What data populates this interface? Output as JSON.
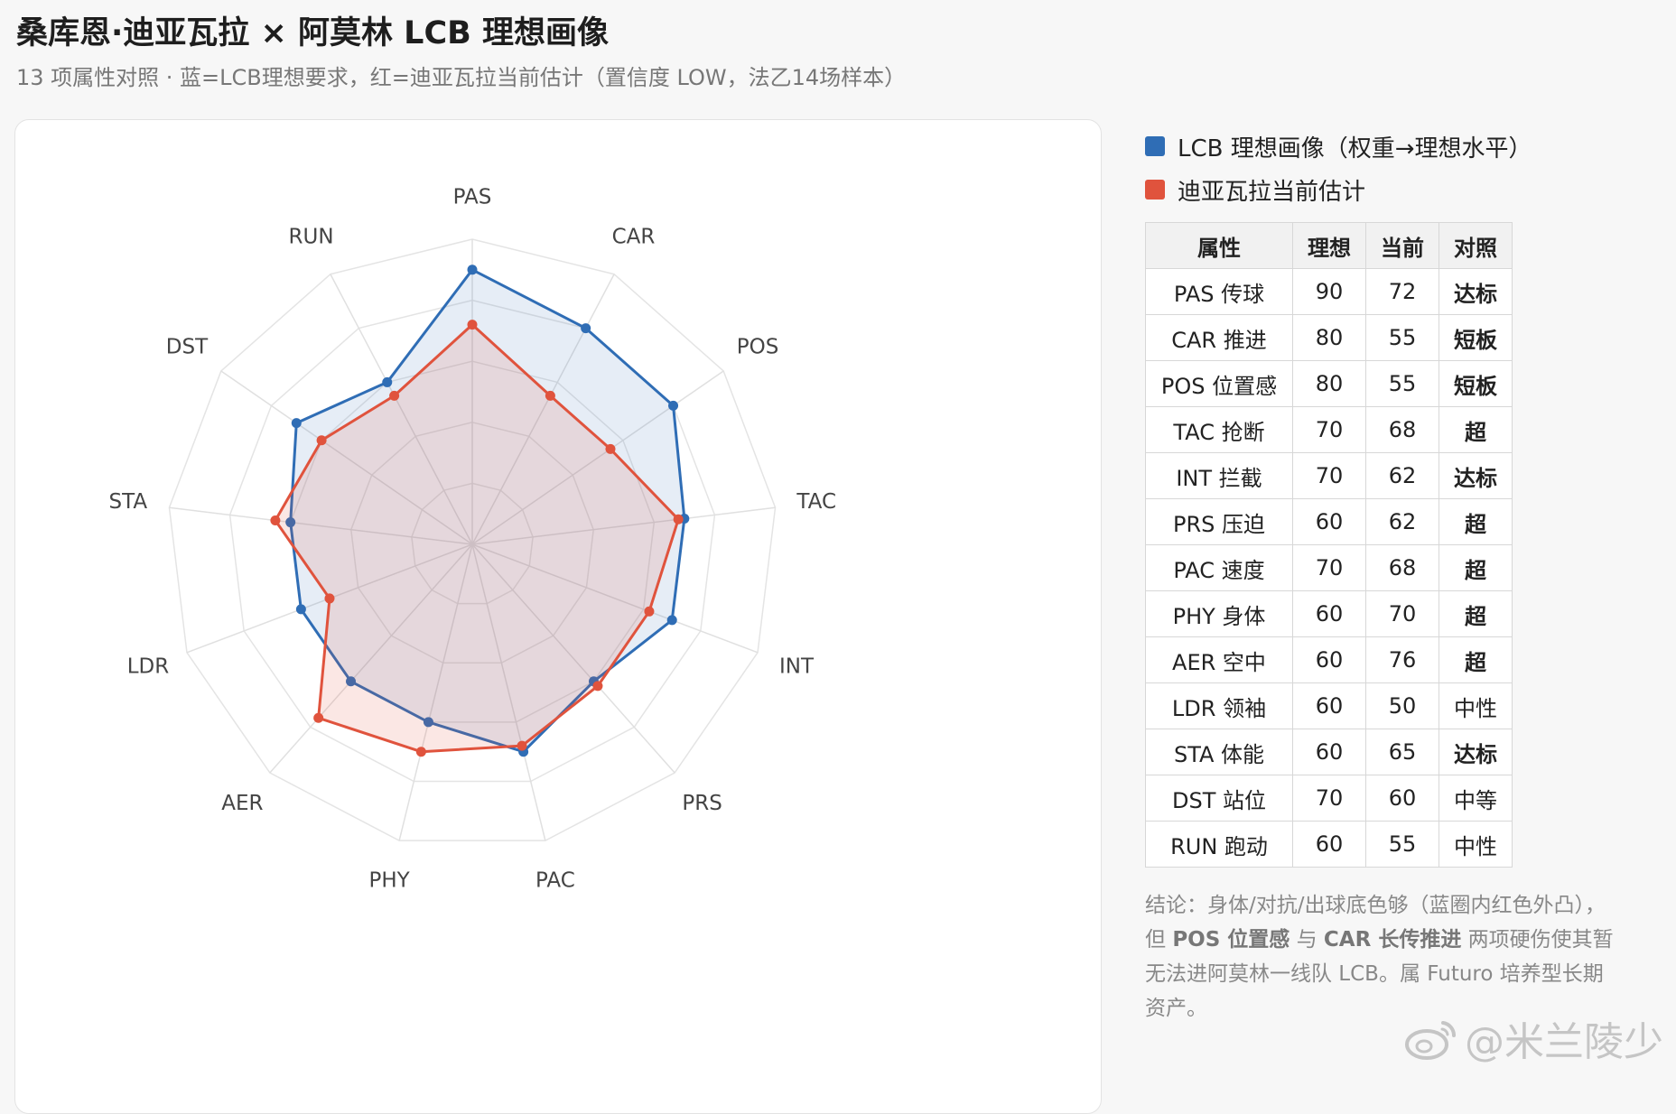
{
  "header": {
    "title": "桑库恩·迪亚瓦拉 × 阿莫林 LCB 理想画像",
    "subtitle": "13 项属性对照 · 蓝=LCB理想要求，红=迪亚瓦拉当前估计（置信度 LOW，法乙14场样本）"
  },
  "legend": {
    "items": [
      {
        "label": "LCB 理想画像（权重→理想水平）",
        "color": "#2f6db5"
      },
      {
        "label": "迪亚瓦拉当前估计",
        "color": "#e0533d"
      }
    ]
  },
  "chart_data": {
    "type": "radar",
    "axes": [
      "PAS",
      "CAR",
      "POS",
      "TAC",
      "INT",
      "PRS",
      "PAC",
      "PHY",
      "AER",
      "LDR",
      "STA",
      "DST",
      "RUN"
    ],
    "range": [
      0,
      100
    ],
    "grid": true,
    "legend_position": "top-right",
    "series": [
      {
        "name": "LCB 理想画像（权重→理想水平）",
        "color": "#2f6db5",
        "fill": "rgba(47,109,181,0.12)",
        "values": [
          90,
          80,
          80,
          70,
          70,
          60,
          70,
          60,
          60,
          60,
          60,
          70,
          60
        ]
      },
      {
        "name": "迪亚瓦拉当前估计",
        "color": "#e0533d",
        "fill": "rgba(224,83,61,0.14)",
        "values": [
          72,
          55,
          55,
          68,
          62,
          62,
          68,
          70,
          76,
          50,
          65,
          60,
          55
        ]
      }
    ]
  },
  "table": {
    "headers": [
      "属性",
      "理想",
      "当前",
      "对照"
    ],
    "rows": [
      {
        "attr": "PAS 传球",
        "ideal": "90",
        "current": "72",
        "status": "达标",
        "tone": "good"
      },
      {
        "attr": "CAR 推进",
        "ideal": "80",
        "current": "55",
        "status": "短板",
        "tone": "bad"
      },
      {
        "attr": "POS 位置感",
        "ideal": "80",
        "current": "55",
        "status": "短板",
        "tone": "bad"
      },
      {
        "attr": "TAC 抢断",
        "ideal": "70",
        "current": "68",
        "status": "超",
        "tone": "good"
      },
      {
        "attr": "INT 拦截",
        "ideal": "70",
        "current": "62",
        "status": "达标",
        "tone": "good"
      },
      {
        "attr": "PRS 压迫",
        "ideal": "60",
        "current": "62",
        "status": "超",
        "tone": "good"
      },
      {
        "attr": "PAC 速度",
        "ideal": "70",
        "current": "68",
        "status": "超",
        "tone": "good"
      },
      {
        "attr": "PHY 身体",
        "ideal": "60",
        "current": "70",
        "status": "超",
        "tone": "good"
      },
      {
        "attr": "AER 空中",
        "ideal": "60",
        "current": "76",
        "status": "超",
        "tone": "good"
      },
      {
        "attr": "LDR 领袖",
        "ideal": "60",
        "current": "50",
        "status": "中性",
        "tone": "neutral"
      },
      {
        "attr": "STA 体能",
        "ideal": "60",
        "current": "65",
        "status": "达标",
        "tone": "good"
      },
      {
        "attr": "DST 站位",
        "ideal": "70",
        "current": "60",
        "status": "中等",
        "tone": "neutral"
      },
      {
        "attr": "RUN 跑动",
        "ideal": "60",
        "current": "55",
        "status": "中性",
        "tone": "neutral"
      }
    ]
  },
  "conclusion": {
    "part1": "结论：身体/对抗/出球底色够（蓝圈内红色外凸），但 ",
    "bold1": "POS 位置感",
    "part2": " 与 ",
    "bold2": "CAR 长传推进",
    "part3": " 两项硬伤使其暂无法进阿莫林一线队 LCB。属 Futuro 培养型长期资产。"
  },
  "watermark": {
    "text": "@米兰陵少",
    "icon": "weibo-icon"
  }
}
